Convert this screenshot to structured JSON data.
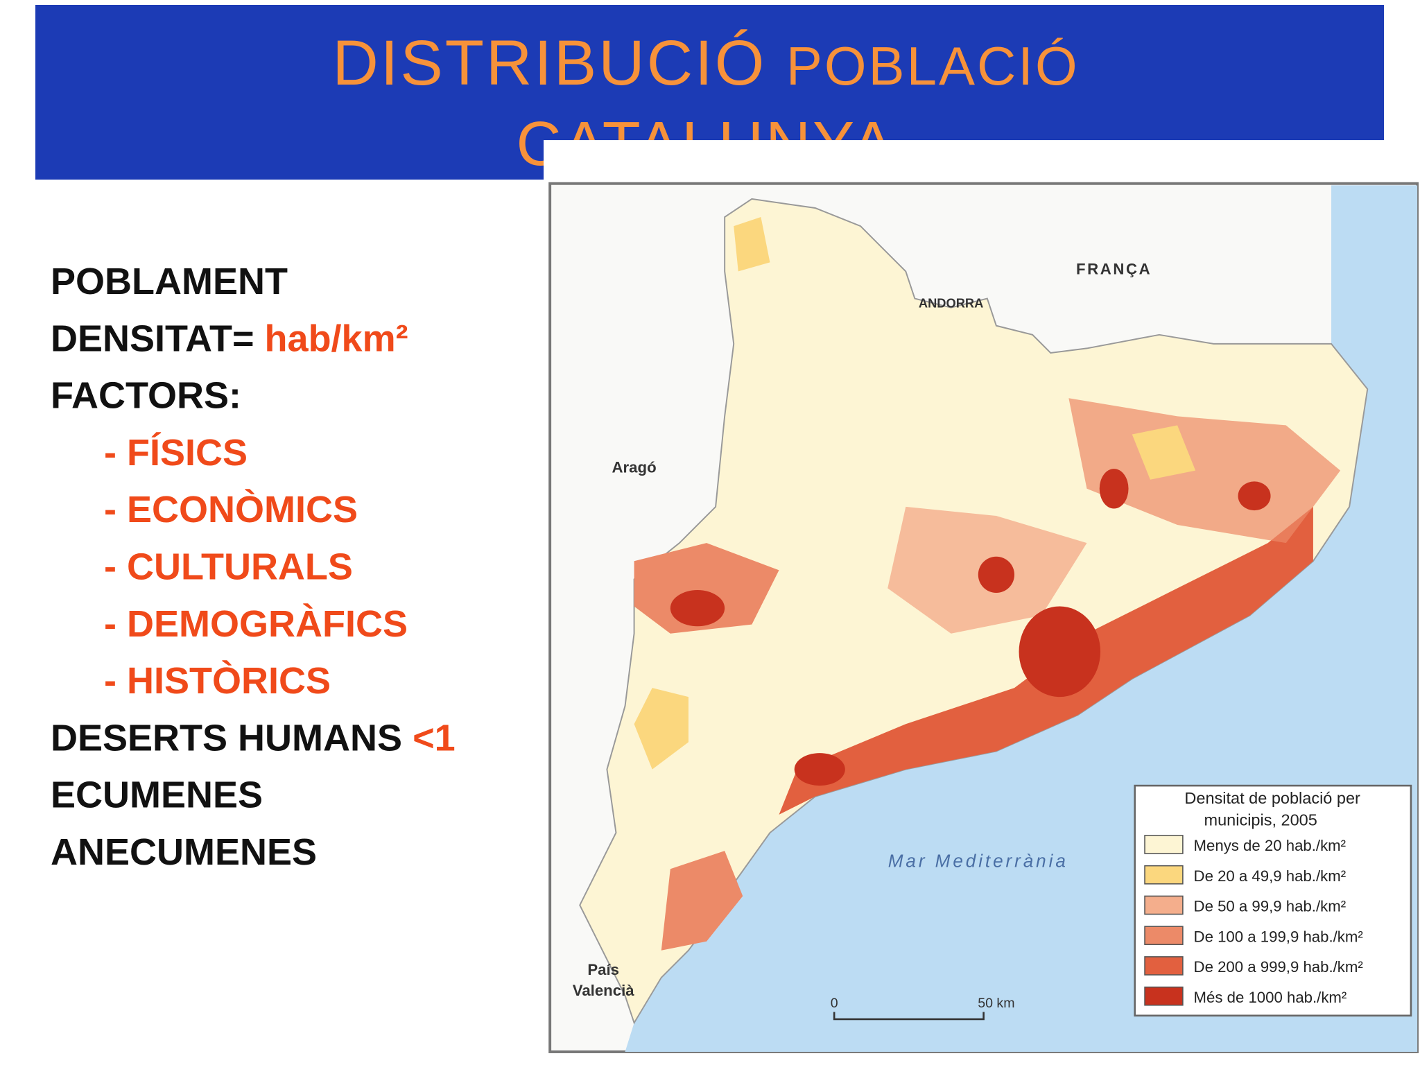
{
  "header": {
    "title_main": "DISTRIBUCIÓ",
    "title_small": "POBLACIÓ",
    "title_line2": "CATALUNYA"
  },
  "content": {
    "items": [
      {
        "text": "POBLAMENT"
      },
      {
        "text": "DENSITAT=",
        "accent": "hab/km²"
      },
      {
        "text": "FACTORS:"
      },
      {
        "accent": "- FÍSICS"
      },
      {
        "accent": "- ECONÒMICS"
      },
      {
        "accent": "- CULTURALS"
      },
      {
        "accent": "- DEMOGRÀFICS"
      },
      {
        "accent": "- HISTÒRICS"
      },
      {
        "text": "DESERTS HUMANS",
        "accent": "<1"
      },
      {
        "text": "ECUMENES"
      },
      {
        "text": "ANECUMENES"
      }
    ]
  },
  "map": {
    "labels": {
      "france": "FRANÇA",
      "andorra": "ANDORRA",
      "aragon": "Aragó",
      "valencia": [
        "País",
        "Valencià"
      ],
      "sea": "Mar Mediterrània"
    },
    "scale": {
      "start": "0",
      "end": "50 km"
    },
    "legend": {
      "title": [
        "Densitat de població per",
        "municipis, 2005"
      ],
      "items": [
        {
          "label": "Menys de 20 hab./km²",
          "color": "#fdf5d4"
        },
        {
          "label": "De 20 a 49,9 hab./km²",
          "color": "#fbd77e"
        },
        {
          "label": "De 50 a 99,9 hab./km²",
          "color": "#f4ae8c"
        },
        {
          "label": "De 100 a 199,9 hab./km²",
          "color": "#ec8a68"
        },
        {
          "label": "De 200 a 999,9 hab./km²",
          "color": "#e2603f"
        },
        {
          "label": "Més de 1000 hab./km²",
          "color": "#c8321e"
        }
      ]
    }
  }
}
